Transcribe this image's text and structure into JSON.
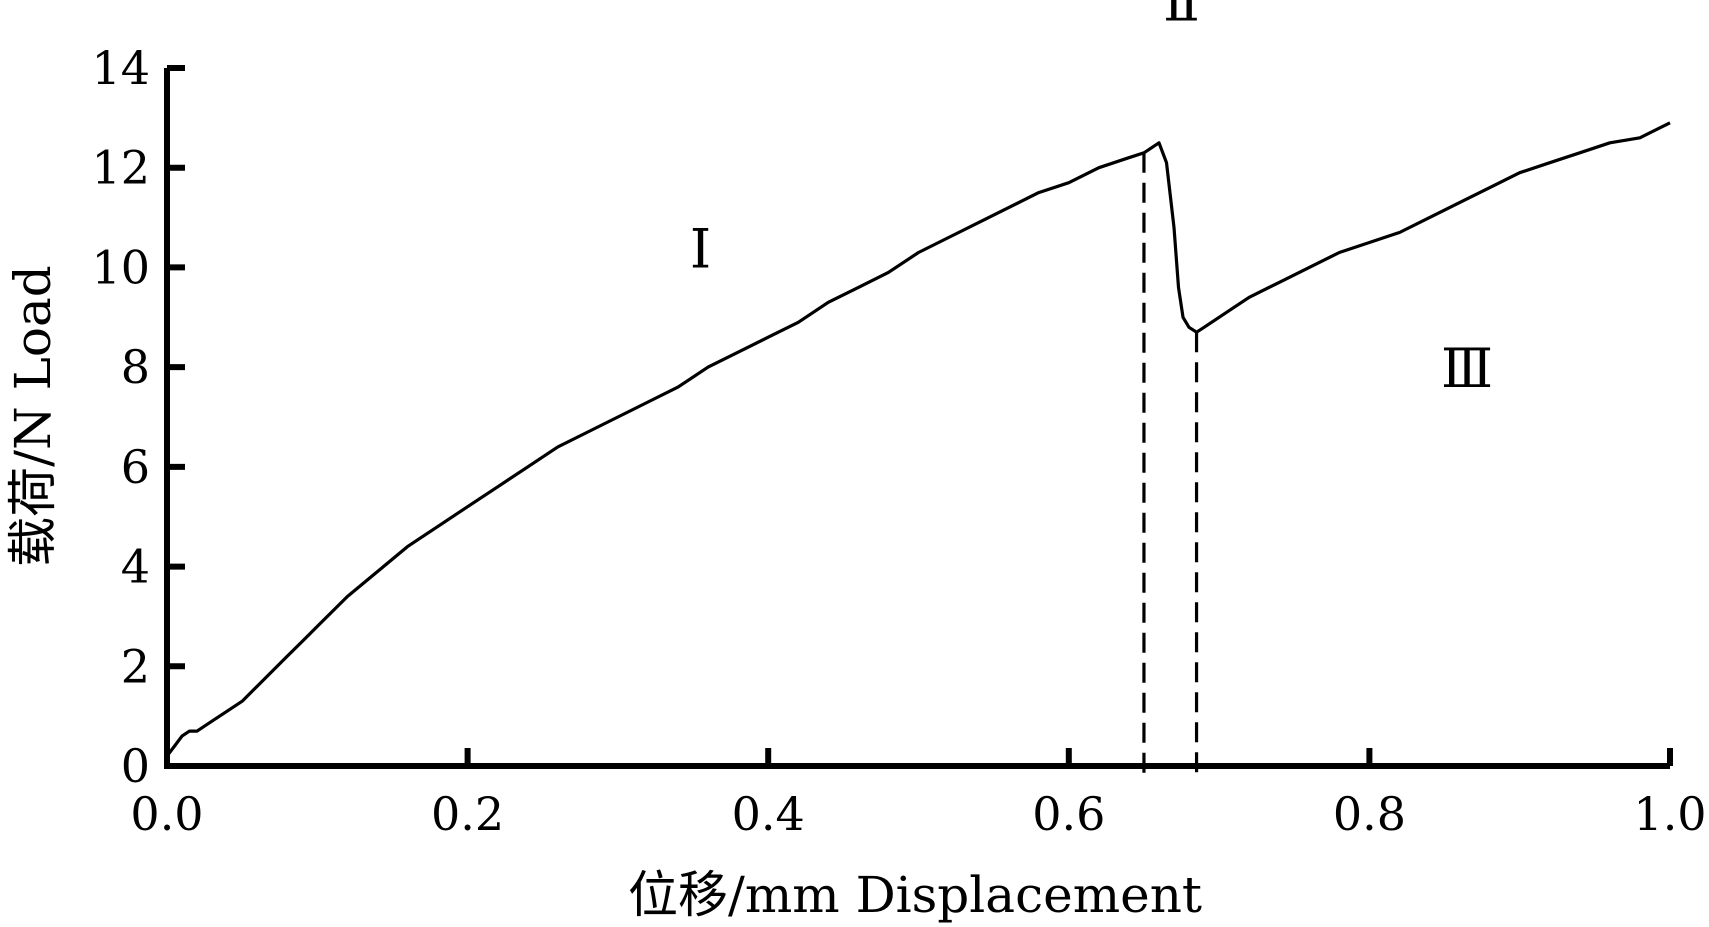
{
  "chart_data": {
    "type": "line",
    "title": "",
    "xlabel": "位移/mm  Displacement",
    "ylabel": "载荷/N  Load",
    "xlim": [
      0.0,
      1.0
    ],
    "ylim": [
      0,
      14
    ],
    "grid": false,
    "legend": "none",
    "x_ticks": [
      "0.0",
      "0.2",
      "0.4",
      "0.6",
      "0.8",
      "1.0"
    ],
    "y_ticks": [
      "0",
      "2",
      "4",
      "6",
      "8",
      "10",
      "12",
      "14"
    ],
    "line_color": "#000000",
    "series": [
      {
        "x": [
          0.0,
          0.005,
          0.01,
          0.015,
          0.02,
          0.03,
          0.04,
          0.05,
          0.06,
          0.07,
          0.08,
          0.09,
          0.1,
          0.12,
          0.14,
          0.16,
          0.18,
          0.2,
          0.22,
          0.24,
          0.26,
          0.28,
          0.3,
          0.32,
          0.34,
          0.36,
          0.38,
          0.4,
          0.42,
          0.44,
          0.46,
          0.48,
          0.5,
          0.52,
          0.54,
          0.56,
          0.58,
          0.6,
          0.62,
          0.64,
          0.65,
          0.655,
          0.66,
          0.665,
          0.67,
          0.673,
          0.676,
          0.68,
          0.685,
          0.69,
          0.7,
          0.71,
          0.72,
          0.74,
          0.76,
          0.78,
          0.8,
          0.82,
          0.84,
          0.86,
          0.88,
          0.9,
          0.92,
          0.94,
          0.96,
          0.98,
          1.0
        ],
        "y": [
          0.2,
          0.4,
          0.6,
          0.7,
          0.7,
          0.9,
          1.1,
          1.3,
          1.6,
          1.9,
          2.2,
          2.5,
          2.8,
          3.4,
          3.9,
          4.4,
          4.8,
          5.2,
          5.6,
          6.0,
          6.4,
          6.7,
          7.0,
          7.3,
          7.6,
          8.0,
          8.3,
          8.6,
          8.9,
          9.3,
          9.6,
          9.9,
          10.3,
          10.6,
          10.9,
          11.2,
          11.5,
          11.7,
          12.0,
          12.2,
          12.3,
          12.4,
          12.5,
          12.1,
          10.8,
          9.6,
          9.0,
          8.8,
          8.7,
          8.8,
          9.0,
          9.2,
          9.4,
          9.7,
          10.0,
          10.3,
          10.5,
          10.7,
          11.0,
          11.3,
          11.6,
          11.9,
          12.1,
          12.3,
          12.5,
          12.6,
          12.9
        ]
      }
    ],
    "divider_lines": [
      {
        "x": 0.65,
        "y_top": 12.3
      },
      {
        "x": 0.685,
        "y_top": 8.7
      }
    ],
    "annotations": [
      {
        "text": "Ⅰ",
        "x": 0.355,
        "y": 10.0
      },
      {
        "text": "Ⅱ",
        "x": 0.675,
        "y": 14.95
      },
      {
        "text": "Ⅲ",
        "x": 0.865,
        "y": 7.6
      }
    ]
  }
}
